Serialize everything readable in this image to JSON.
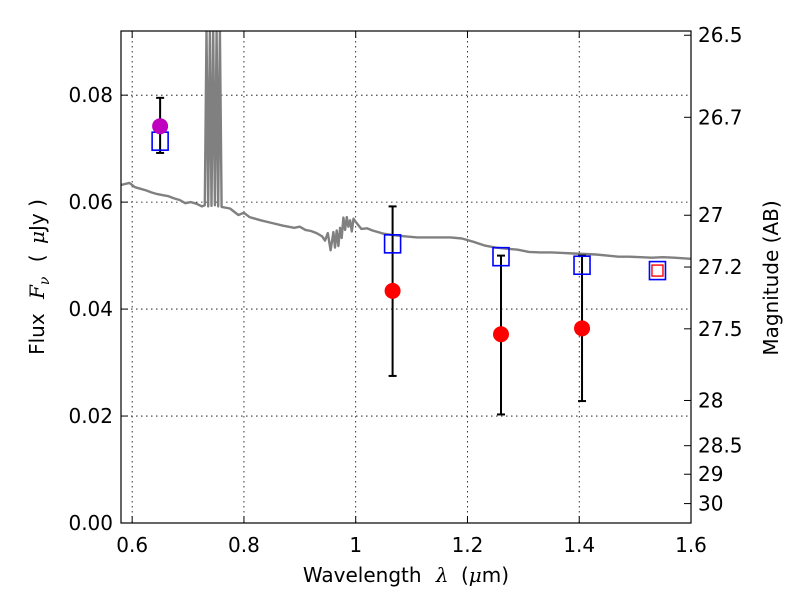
{
  "chart_data": {
    "type": "scatter",
    "title": "",
    "xlabel": {
      "prefix": "Wavelength",
      "symbol": "λ",
      "unit_open": "(",
      "unit_mu": "μ",
      "unit_rest": "m)"
    },
    "ylabel": {
      "prefix": "Flux",
      "symbol": "F",
      "subscript": "ν",
      "unit_open": "(",
      "unit_mu": "μ",
      "unit_rest": "Jy )"
    },
    "y2label": "Magnitude (AB)",
    "xlim": [
      0.58,
      1.6
    ],
    "ylim": [
      0.0,
      0.092
    ],
    "grid": true,
    "x_ticks": [
      {
        "value": 0.6,
        "label": "0.6"
      },
      {
        "value": 0.8,
        "label": "0.8"
      },
      {
        "value": 1.0,
        "label": "1"
      },
      {
        "value": 1.2,
        "label": "1.2"
      },
      {
        "value": 1.4,
        "label": "1.4"
      },
      {
        "value": 1.6,
        "label": "1.6"
      }
    ],
    "y_ticks": [
      {
        "value": 0.0,
        "label": "0.00"
      },
      {
        "value": 0.02,
        "label": "0.02"
      },
      {
        "value": 0.04,
        "label": "0.04"
      },
      {
        "value": 0.06,
        "label": "0.06"
      },
      {
        "value": 0.08,
        "label": "0.08"
      }
    ],
    "y2_ticks": [
      {
        "value": 26.5,
        "label": "26.5"
      },
      {
        "value": 26.7,
        "label": "26.7"
      },
      {
        "value": 27.0,
        "label": "27"
      },
      {
        "value": 27.2,
        "label": "27.2"
      },
      {
        "value": 27.5,
        "label": "27.5"
      },
      {
        "value": 28.0,
        "label": "28"
      },
      {
        "value": 28.5,
        "label": "28.5"
      },
      {
        "value": 29.0,
        "label": "29"
      },
      {
        "value": 30.0,
        "label": "30"
      }
    ],
    "observed": [
      {
        "x": 0.65,
        "y": 0.0742,
        "yerr_low": 0.0692,
        "yerr_high": 0.0795,
        "color": "#bf00bf"
      },
      {
        "x": 1.066,
        "y": 0.0434,
        "yerr_low": 0.0275,
        "yerr_high": 0.0592,
        "color": "#ff0000"
      },
      {
        "x": 1.26,
        "y": 0.0353,
        "yerr_low": 0.0203,
        "yerr_high": 0.05,
        "color": "#ff0000"
      },
      {
        "x": 1.405,
        "y": 0.0364,
        "yerr_low": 0.0228,
        "yerr_high": 0.05,
        "color": "#ff0000"
      }
    ],
    "model_photometry": [
      {
        "x": 0.65,
        "y": 0.0714,
        "color": "#0000ff"
      },
      {
        "x": 1.066,
        "y": 0.0522,
        "color": "#0000ff"
      },
      {
        "x": 1.26,
        "y": 0.0498,
        "color": "#0000ff"
      },
      {
        "x": 1.405,
        "y": 0.0482,
        "color": "#0000ff"
      },
      {
        "x": 1.54,
        "y": 0.0472,
        "color": "#0000ff"
      }
    ],
    "limit_marker": {
      "x": 1.54,
      "y": 0.0472,
      "color": "#ff0000"
    },
    "model_spectrum": {
      "color": "#808080",
      "x": [
        0.58,
        0.595,
        0.605,
        0.615,
        0.625,
        0.635,
        0.645,
        0.655,
        0.665,
        0.675,
        0.685,
        0.695,
        0.705,
        0.715,
        0.725,
        0.73,
        0.733,
        0.736,
        0.739,
        0.742,
        0.745,
        0.748,
        0.751,
        0.754,
        0.757,
        0.76,
        0.775,
        0.79,
        0.8,
        0.81,
        0.82,
        0.83,
        0.85,
        0.87,
        0.89,
        0.9,
        0.91,
        0.92,
        0.93,
        0.94,
        0.945,
        0.95,
        0.955,
        0.96,
        0.963,
        0.966,
        0.969,
        0.972,
        0.975,
        0.978,
        0.981,
        0.984,
        0.987,
        0.99,
        0.993,
        0.996,
        1.0,
        1.01,
        1.02,
        1.03,
        1.05,
        1.07,
        1.09,
        1.11,
        1.13,
        1.15,
        1.17,
        1.19,
        1.21,
        1.23,
        1.25,
        1.27,
        1.29,
        1.31,
        1.33,
        1.35,
        1.37,
        1.39,
        1.41,
        1.43,
        1.45,
        1.47,
        1.49,
        1.51,
        1.53,
        1.55,
        1.57,
        1.6
      ],
      "y": [
        0.0632,
        0.0636,
        0.0628,
        0.0625,
        0.0622,
        0.0618,
        0.0615,
        0.0613,
        0.0611,
        0.0607,
        0.0604,
        0.0598,
        0.06,
        0.0597,
        0.0592,
        0.0594,
        0.092,
        0.0592,
        0.092,
        0.0593,
        0.092,
        0.0594,
        0.092,
        0.0592,
        0.092,
        0.0591,
        0.0588,
        0.0576,
        0.058,
        0.0572,
        0.0569,
        0.0566,
        0.0561,
        0.0556,
        0.0552,
        0.0554,
        0.0548,
        0.0546,
        0.0542,
        0.0536,
        0.0528,
        0.0542,
        0.051,
        0.0544,
        0.0515,
        0.0547,
        0.0518,
        0.0552,
        0.0533,
        0.0571,
        0.0548,
        0.0572,
        0.0554,
        0.0566,
        0.0545,
        0.0569,
        0.0563,
        0.055,
        0.0551,
        0.0547,
        0.0541,
        0.0538,
        0.0536,
        0.0534,
        0.0534,
        0.0534,
        0.0534,
        0.0532,
        0.0526,
        0.0519,
        0.0515,
        0.0513,
        0.0511,
        0.0507,
        0.0506,
        0.0506,
        0.0505,
        0.0504,
        0.0503,
        0.0502,
        0.05,
        0.0498,
        0.0498,
        0.0497,
        0.0496,
        0.0497,
        0.0496,
        0.0494
      ]
    }
  }
}
